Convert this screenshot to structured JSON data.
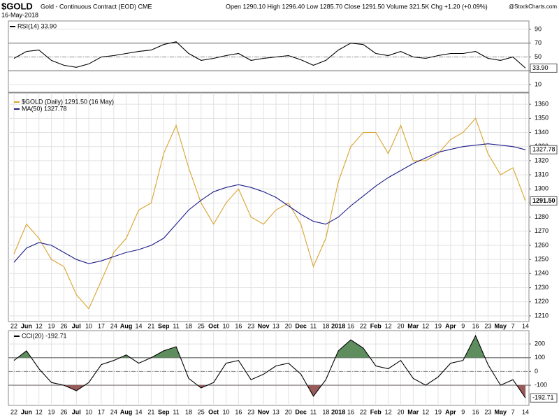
{
  "header": {
    "symbol": "$GOLD",
    "name": "Gold - Continuous Contract (EOD) CME",
    "date": "16-May-2018",
    "quote": "Open 1290.10 High 1296.40 Low 1285.70 Close 1291.50 Volume 321.5K Chg +1.20 (+0.09%)",
    "source": "@StockCharts.com"
  },
  "chart_data": [
    {
      "type": "line",
      "ylim": [
        -1,
        102
      ],
      "yticks": [
        10,
        30,
        50,
        70,
        90
      ],
      "bands": [
        30,
        70
      ],
      "center": 50,
      "series": [
        {
          "name": "RSI(14) 33.90",
          "color": "#000000",
          "last_label": "33.90",
          "values": [
            48,
            58,
            60,
            45,
            38,
            35,
            40,
            50,
            52,
            55,
            58,
            60,
            68,
            72,
            55,
            45,
            48,
            52,
            55,
            45,
            48,
            50,
            52,
            46,
            38,
            45,
            60,
            70,
            68,
            55,
            52,
            58,
            50,
            48,
            52,
            55,
            55,
            58,
            48,
            45,
            50,
            33.9
          ]
        }
      ]
    },
    {
      "type": "line",
      "ylim": [
        1206,
        1368
      ],
      "yticks": [
        1210,
        1220,
        1230,
        1240,
        1250,
        1260,
        1270,
        1280,
        1290,
        1300,
        1310,
        1320,
        1330,
        1340,
        1350,
        1360
      ],
      "categories": [
        "22",
        "Jun",
        "12",
        "19",
        "26",
        "Jul",
        "10",
        "17",
        "24",
        "Aug",
        "14",
        "21",
        "Sep",
        "11",
        "18",
        "25",
        "Oct",
        "10",
        "16",
        "23",
        "Nov",
        "13",
        "20",
        "Dec",
        "11",
        "18",
        "2018",
        "16",
        "22",
        "Feb",
        "12",
        "20",
        "Mar",
        "12",
        "19",
        "Apr",
        "9",
        "16",
        "23",
        "May",
        "7",
        "14"
      ],
      "series": [
        {
          "name": "$GOLD (Daily) 1291.50 (16 May)",
          "color": "#d9a32e",
          "last_label": "1291.50",
          "values": [
            1254,
            1275,
            1265,
            1250,
            1245,
            1225,
            1215,
            1235,
            1255,
            1265,
            1285,
            1290,
            1325,
            1345,
            1315,
            1290,
            1275,
            1290,
            1300,
            1280,
            1275,
            1285,
            1290,
            1275,
            1245,
            1265,
            1305,
            1330,
            1340,
            1340,
            1325,
            1345,
            1320,
            1320,
            1325,
            1335,
            1340,
            1350,
            1325,
            1310,
            1315,
            1291.5
          ]
        },
        {
          "name": "MA(50) 1327.78",
          "color": "#1c1c8a",
          "last_label": "1327.78",
          "values": [
            1248,
            1258,
            1262,
            1260,
            1255,
            1250,
            1247,
            1249,
            1252,
            1255,
            1257,
            1260,
            1265,
            1275,
            1285,
            1292,
            1298,
            1301,
            1303,
            1301,
            1298,
            1294,
            1288,
            1282,
            1277,
            1275,
            1280,
            1288,
            1295,
            1302,
            1308,
            1313,
            1318,
            1322,
            1326,
            1328,
            1330,
            1331,
            1332,
            1331,
            1330,
            1327.78
          ]
        }
      ]
    },
    {
      "type": "line",
      "ylim": [
        -247,
        297
      ],
      "yticks": [
        -100,
        0,
        100,
        200
      ],
      "bands": [
        -100,
        100
      ],
      "center": 0,
      "categories": [
        "22",
        "Jun",
        "12",
        "19",
        "26",
        "Jul",
        "10",
        "17",
        "24",
        "Aug",
        "14",
        "21",
        "Sep",
        "11",
        "18",
        "25",
        "Oct",
        "10",
        "16",
        "23",
        "Nov",
        "13",
        "20",
        "Dec",
        "11",
        "18",
        "2018",
        "16",
        "22",
        "Feb",
        "12",
        "20",
        "Mar",
        "12",
        "19",
        "Apr",
        "9",
        "16",
        "23",
        "May",
        "7",
        "14"
      ],
      "series": [
        {
          "name": "CCI(20) -192.71",
          "color": "#000000",
          "last_label": "-192.71",
          "values": [
            80,
            150,
            20,
            -80,
            -100,
            -140,
            -80,
            50,
            80,
            120,
            60,
            100,
            150,
            180,
            -50,
            -120,
            -80,
            60,
            80,
            -60,
            -20,
            40,
            60,
            -20,
            -180,
            -60,
            150,
            230,
            170,
            40,
            20,
            80,
            -50,
            -100,
            -40,
            60,
            80,
            260,
            50,
            -100,
            -60,
            -192.71
          ]
        }
      ]
    }
  ]
}
